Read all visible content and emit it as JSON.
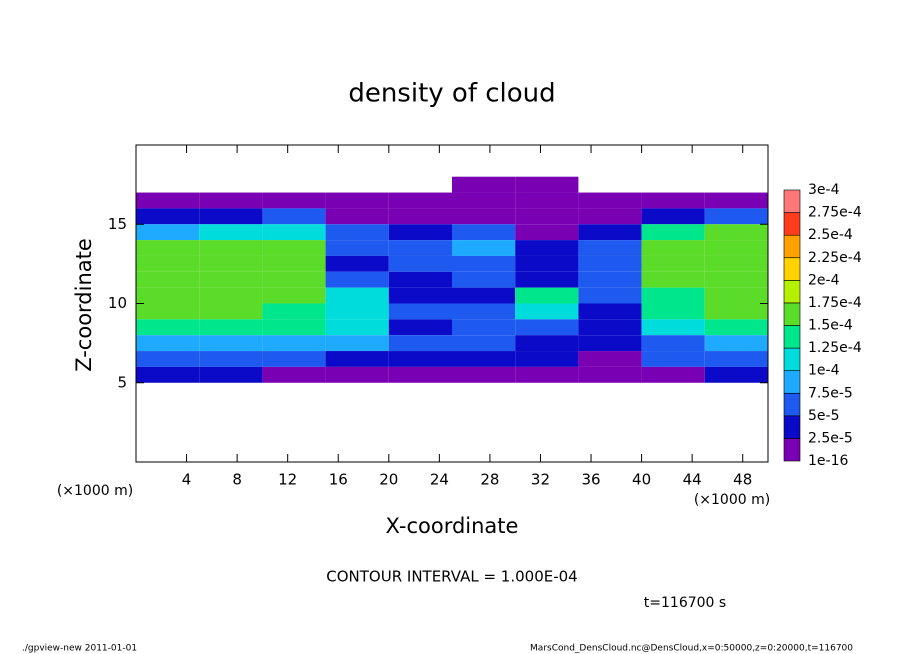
{
  "chart_data": {
    "type": "contour",
    "title": "density of cloud",
    "xlabel": "X-coordinate",
    "ylabel": "Z-coordinate",
    "xunit": "(×1000 m)",
    "yunit": "(×1000 m)",
    "xlim": [
      0,
      50
    ],
    "ylim": [
      0,
      20
    ],
    "xticks": [
      4,
      8,
      12,
      16,
      20,
      24,
      28,
      32,
      36,
      40,
      44,
      48
    ],
    "yticks": [
      5,
      10,
      15
    ],
    "x_bins": [
      0,
      5,
      10,
      15,
      20,
      25,
      30,
      35,
      40,
      45,
      50
    ],
    "z_bins": [
      18,
      17,
      16,
      15,
      14,
      13,
      12,
      11,
      10,
      9,
      8,
      7,
      6,
      5
    ],
    "z_values": [
      [
        null,
        null,
        null,
        null,
        null,
        1e-06,
        1e-06,
        null,
        null,
        null
      ],
      [
        1e-06,
        1e-06,
        1e-06,
        1e-06,
        1e-06,
        1e-06,
        1e-06,
        1e-06,
        1e-06,
        1e-06
      ],
      [
        3e-05,
        3e-05,
        5e-05,
        2e-05,
        2e-05,
        1e-05,
        1e-05,
        2e-05,
        3e-05,
        6e-05
      ],
      [
        9e-05,
        0.00012,
        0.00012,
        5e-05,
        3e-05,
        5e-05,
        2e-05,
        3e-05,
        0.00013,
        0.00015
      ],
      [
        0.00016,
        0.00016,
        0.00016,
        6e-05,
        6e-05,
        8e-05,
        4e-05,
        5e-05,
        0.00016,
        0.00016
      ],
      [
        0.00017,
        0.00017,
        0.00017,
        4e-05,
        7e-05,
        6e-05,
        3e-05,
        6e-05,
        0.00017,
        0.00017
      ],
      [
        0.00017,
        0.00017,
        0.00016,
        5e-05,
        4e-05,
        5e-05,
        3e-05,
        7e-05,
        0.00016,
        0.00017
      ],
      [
        0.00016,
        0.00016,
        0.00015,
        0.00012,
        3e-05,
        3e-05,
        0.00013,
        6e-05,
        0.00014,
        0.00016
      ],
      [
        0.00015,
        0.00015,
        0.00014,
        0.00011,
        5e-05,
        5e-05,
        0.00012,
        4e-05,
        0.00013,
        0.00015
      ],
      [
        0.00013,
        0.00013,
        0.00013,
        0.00012,
        4e-05,
        6e-05,
        5e-05,
        3e-05,
        0.00012,
        0.00013
      ],
      [
        8e-05,
        8e-05,
        8e-05,
        8e-05,
        5e-05,
        6e-05,
        4e-05,
        3e-05,
        7e-05,
        8e-05
      ],
      [
        6e-05,
        6e-05,
        5e-05,
        3e-05,
        4e-05,
        4e-05,
        3e-05,
        2e-05,
        5e-05,
        6e-05
      ],
      [
        3e-05,
        3e-05,
        2e-05,
        1e-05,
        2e-05,
        2e-05,
        1e-05,
        1e-05,
        2e-05,
        3e-05
      ]
    ],
    "colorbar": {
      "levels": [
        {
          "value": 1e-16,
          "label": "1e-16"
        },
        {
          "value": 2.5e-05,
          "label": "2.5e-5"
        },
        {
          "value": 5e-05,
          "label": "5e-5"
        },
        {
          "value": 7.5e-05,
          "label": "7.5e-5"
        },
        {
          "value": 0.0001,
          "label": "1e-4"
        },
        {
          "value": 0.000125,
          "label": "1.25e-4"
        },
        {
          "value": 0.00015,
          "label": "1.5e-4"
        },
        {
          "value": 0.000175,
          "label": "1.75e-4"
        },
        {
          "value": 0.0002,
          "label": "2e-4"
        },
        {
          "value": 0.000225,
          "label": "2.25e-4"
        },
        {
          "value": 0.00025,
          "label": "2.5e-4"
        },
        {
          "value": 0.000275,
          "label": "2.75e-4"
        },
        {
          "value": 0.0003,
          "label": "3e-4"
        }
      ],
      "colors": [
        "#7a00b4",
        "#0a0ac8",
        "#1e5af0",
        "#1eaaff",
        "#00dcdc",
        "#00e68c",
        "#5adc28",
        "#b4f000",
        "#ffd200",
        "#ffa000",
        "#ff3c1e",
        "#ff7878"
      ]
    },
    "contour_interval": "CONTOUR INTERVAL = 1.000E-04",
    "time_label": "t=116700 s",
    "footer_left": "./gpview-new  2011-01-01",
    "footer_right": "MarsCond_DensCloud.nc@DensCloud,x=0:50000,z=0:20000,t=116700"
  }
}
